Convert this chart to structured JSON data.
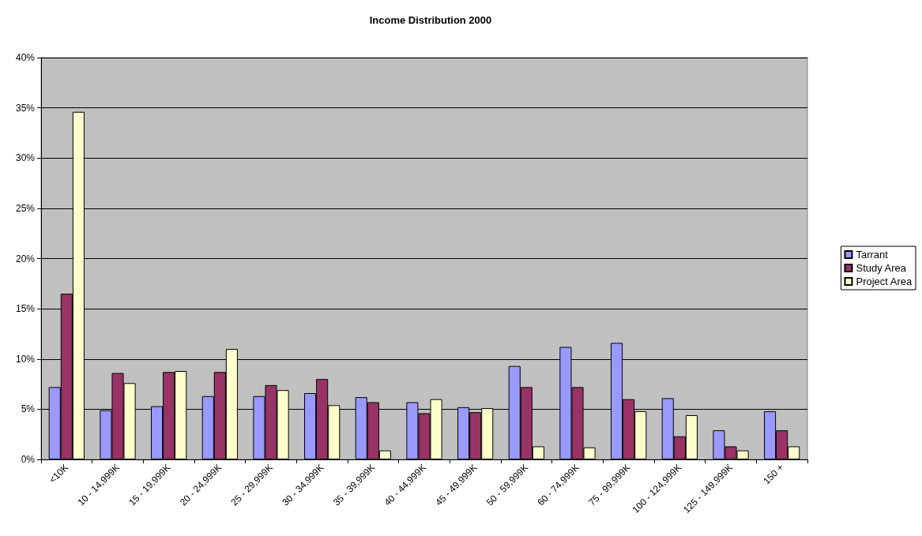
{
  "chart_data": {
    "type": "bar",
    "title": "Income Distribution 2000",
    "categories": [
      "<10K",
      "10 - 14,999K",
      "15 - 19,999K",
      "20 - 24,999K",
      "25 - 29,999K",
      "30 - 34,999K",
      "35 - 39,999K",
      "40 - 44,999K",
      "45 - 49,999K",
      "50 - 59,999K",
      "60 - 74,999K",
      "75 - 99,999K",
      "100 - 124,999K",
      "125 - 149,999K",
      "150 +"
    ],
    "series": [
      {
        "name": "Tarrant",
        "color": "#9999ff",
        "values": [
          7.2,
          4.9,
          5.3,
          6.3,
          6.3,
          6.6,
          6.2,
          5.7,
          5.2,
          9.3,
          11.2,
          11.6,
          6.1,
          2.9,
          4.8
        ]
      },
      {
        "name": "Study Area",
        "color": "#993366",
        "values": [
          16.5,
          8.6,
          8.7,
          8.7,
          7.4,
          8.0,
          5.7,
          4.6,
          4.7,
          7.2,
          7.2,
          6.0,
          2.3,
          1.3,
          2.9
        ]
      },
      {
        "name": "Project Area",
        "color": "#ffffcc",
        "values": [
          34.6,
          7.6,
          8.8,
          11.0,
          6.9,
          5.4,
          0.9,
          6.0,
          5.1,
          1.3,
          1.2,
          4.8,
          4.4,
          0.9,
          1.3
        ]
      }
    ],
    "ylim": [
      0,
      40
    ],
    "yticks": [
      {
        "value": 0,
        "label": "0%"
      },
      {
        "value": 5,
        "label": "5%"
      },
      {
        "value": 10,
        "label": "10%"
      },
      {
        "value": 15,
        "label": "15%"
      },
      {
        "value": 20,
        "label": "20%"
      },
      {
        "value": 25,
        "label": "25%"
      },
      {
        "value": 30,
        "label": "30%"
      },
      {
        "value": 35,
        "label": "35%"
      },
      {
        "value": 40,
        "label": "40%"
      }
    ],
    "grid": "y",
    "legend": "right"
  }
}
